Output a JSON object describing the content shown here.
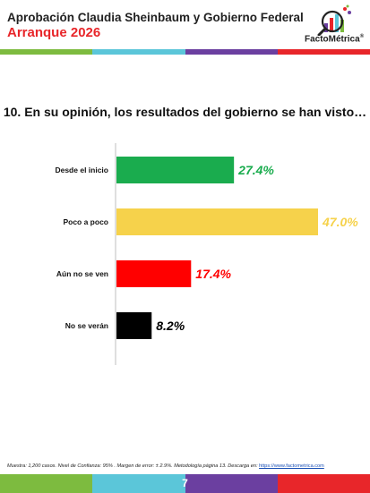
{
  "header": {
    "title": "Aprobación Claudia Sheinbaum y Gobierno Federal",
    "subtitle": "Arranque 2026",
    "logo_text": "FactoMétrica",
    "logo_mark": "®"
  },
  "colors": {
    "stripe": [
      "#7dbb3f",
      "#5bc6d9",
      "#6b3fa0",
      "#e8262a"
    ],
    "accent_red": "#e8262a",
    "link": "#1a4fb5"
  },
  "question": "10. En su opinión, los resultados del gobierno se han visto…",
  "chart_data": {
    "type": "bar",
    "orientation": "horizontal",
    "categories": [
      "Desde el inicio",
      "Poco a poco",
      "Aún no se ven",
      "No se verán"
    ],
    "values": [
      27.4,
      47.0,
      17.4,
      8.2
    ],
    "value_labels": [
      "27.4%",
      "47.0%",
      "17.4%",
      "8.2%"
    ],
    "colors": [
      "#1aac4e",
      "#f6d24b",
      "#ff0000",
      "#000000"
    ],
    "label_colors": [
      "#1aac4e",
      "#f6d24b",
      "#ff0000",
      "#000000"
    ],
    "xlim": [
      0,
      47.0
    ],
    "grid": false,
    "legend": "none"
  },
  "footer": {
    "note": "Muestra: 1,200 casos. Nivel de Confianza: 95% . Margen de error: ± 2.9%. Metodología página 13. Descarga en: ",
    "link": "https://www.factometrica.com"
  },
  "page_number": "7"
}
